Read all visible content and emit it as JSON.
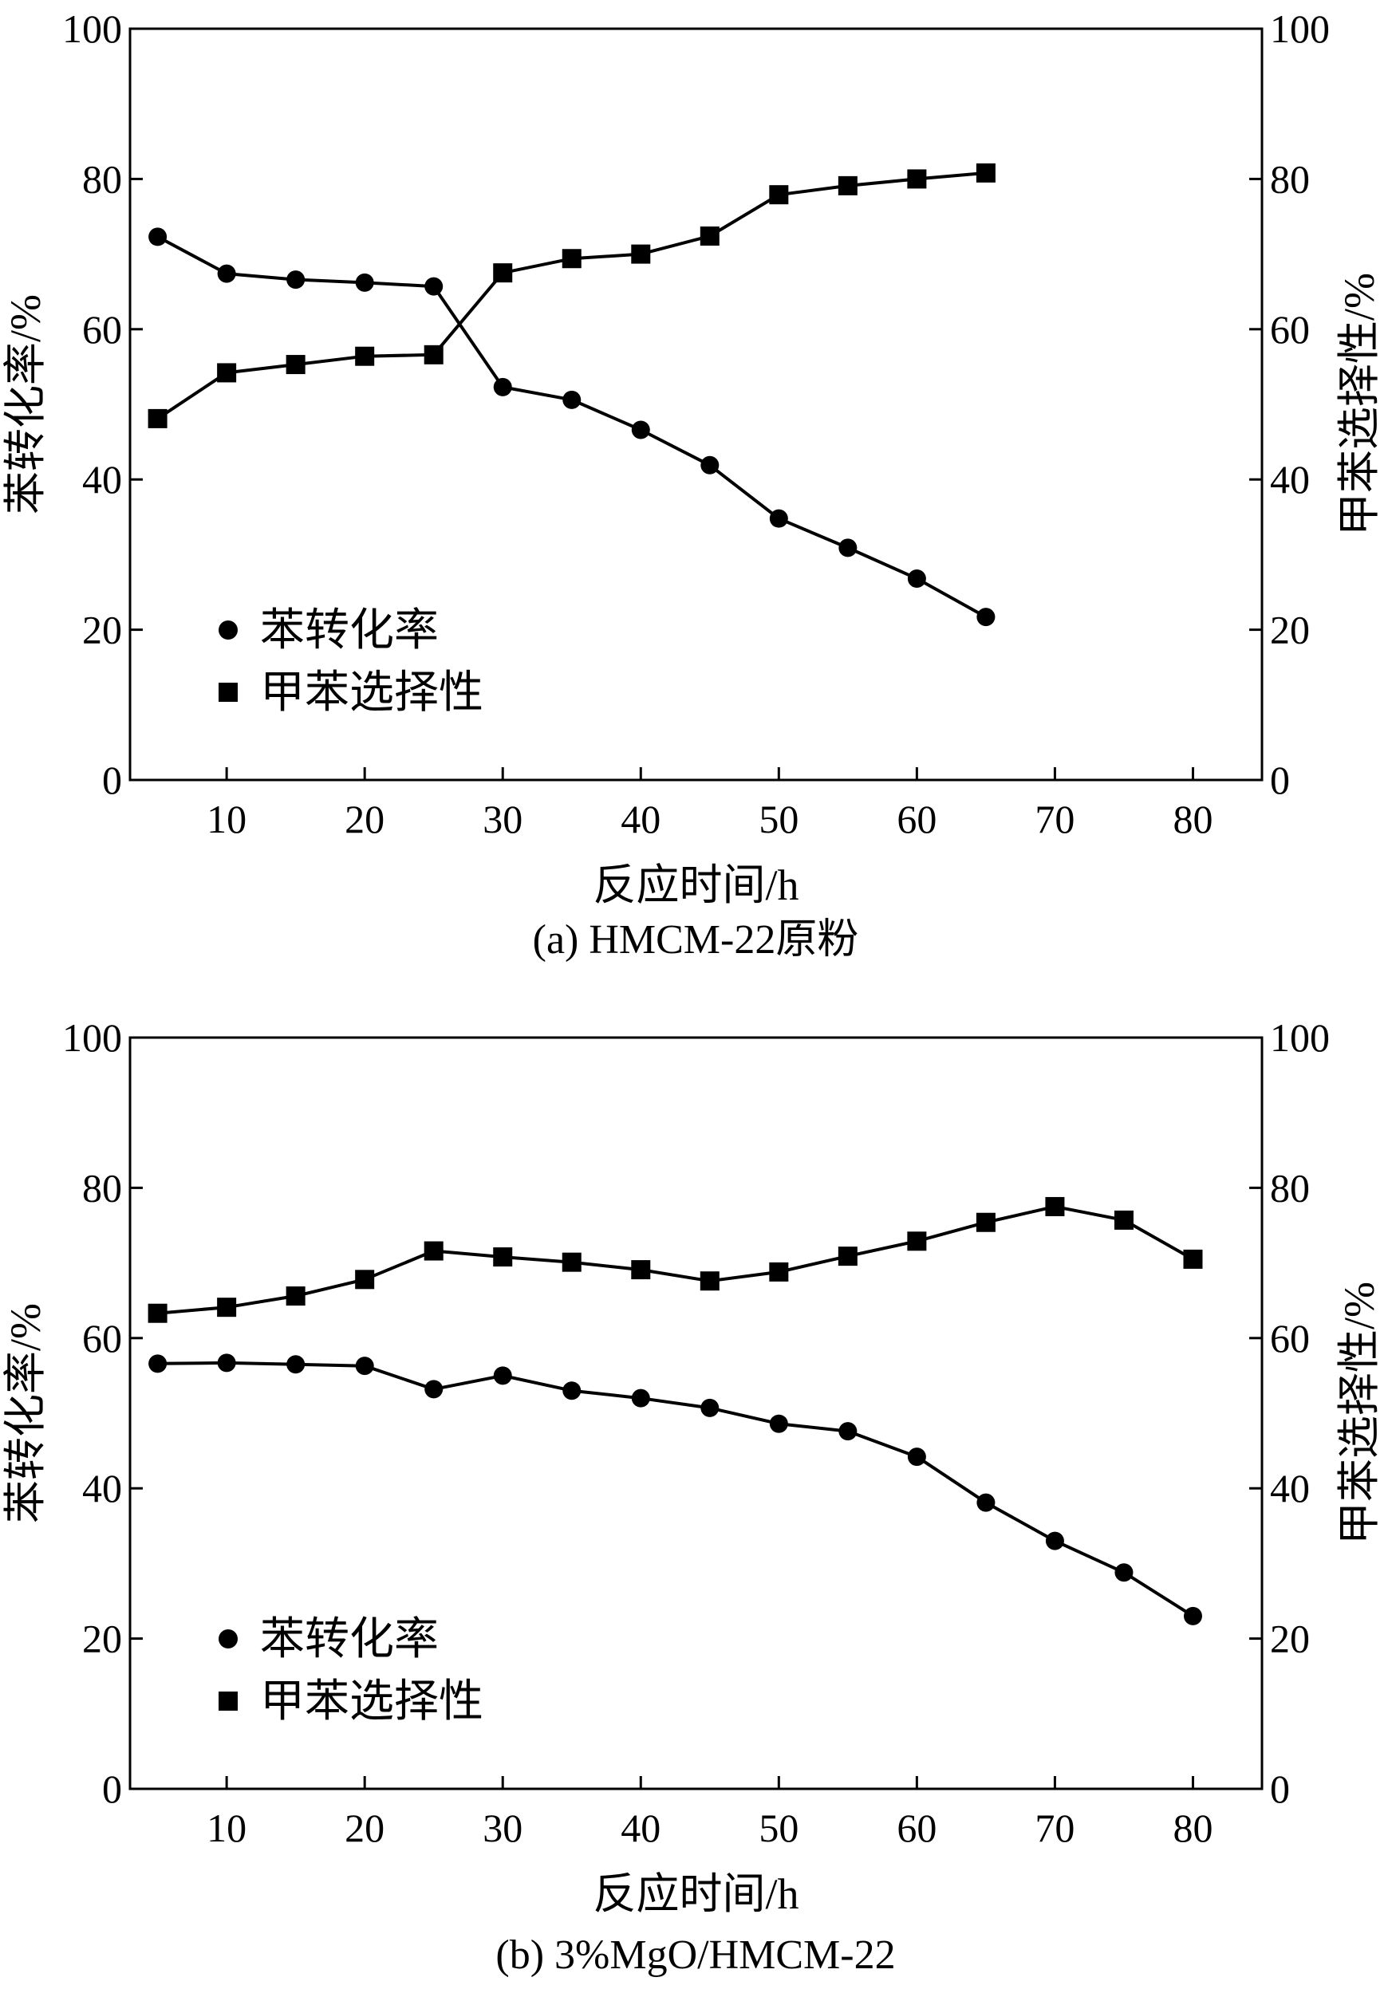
{
  "chart_data": [
    {
      "type": "line",
      "panel": "a",
      "caption": "(a) HMCM-22原粉",
      "xlabel": "反应时间/h",
      "ylabel_left": "苯转化率/%",
      "ylabel_right": "甲苯选择性/%",
      "xlim": [
        3,
        85
      ],
      "ylim": [
        0,
        100
      ],
      "x_ticks": [
        10,
        20,
        30,
        40,
        50,
        60,
        70,
        80
      ],
      "y_ticks": [
        0,
        20,
        40,
        60,
        80,
        100
      ],
      "grid": false,
      "legend_position": "lower-left",
      "series": [
        {
          "name": "苯转化率",
          "marker": "circle",
          "axis": "left",
          "x": [
            5,
            10,
            15,
            20,
            25,
            30,
            35,
            40,
            45,
            50,
            55,
            60,
            65
          ],
          "values": [
            72.3,
            67.4,
            66.6,
            66.2,
            65.7,
            52.3,
            50.6,
            46.6,
            41.9,
            34.8,
            30.9,
            26.8,
            21.7
          ]
        },
        {
          "name": "甲苯选择性",
          "marker": "square",
          "axis": "right",
          "x": [
            5,
            10,
            15,
            20,
            25,
            30,
            35,
            40,
            45,
            50,
            55,
            60,
            65
          ],
          "values": [
            48.1,
            54.2,
            55.3,
            56.4,
            56.6,
            67.5,
            69.4,
            70.0,
            72.4,
            77.9,
            79.1,
            80.0,
            80.8
          ]
        }
      ]
    },
    {
      "type": "line",
      "panel": "b",
      "caption": "(b) 3%MgO/HMCM-22",
      "xlabel": "反应时间/h",
      "ylabel_left": "苯转化率/%",
      "ylabel_right": "甲苯选择性/%",
      "xlim": [
        3,
        85
      ],
      "ylim": [
        0,
        100
      ],
      "x_ticks": [
        10,
        20,
        30,
        40,
        50,
        60,
        70,
        80
      ],
      "y_ticks": [
        0,
        20,
        40,
        60,
        80,
        100
      ],
      "grid": false,
      "legend_position": "lower-left",
      "series": [
        {
          "name": "苯转化率",
          "marker": "circle",
          "axis": "left",
          "x": [
            5,
            10,
            15,
            20,
            25,
            30,
            35,
            40,
            45,
            50,
            55,
            60,
            65,
            70,
            75,
            80
          ],
          "values": [
            56.6,
            56.7,
            56.5,
            56.3,
            53.2,
            55.0,
            53.0,
            52.0,
            50.7,
            48.6,
            47.6,
            44.2,
            38.1,
            33.0,
            28.8,
            23.0
          ]
        },
        {
          "name": "甲苯选择性",
          "marker": "square",
          "axis": "right",
          "x": [
            5,
            10,
            15,
            20,
            25,
            30,
            35,
            40,
            45,
            50,
            55,
            60,
            65,
            70,
            75,
            80
          ],
          "values": [
            63.3,
            64.1,
            65.6,
            67.8,
            71.6,
            70.8,
            70.1,
            69.1,
            67.6,
            68.8,
            70.9,
            72.9,
            75.4,
            77.5,
            75.7,
            70.5
          ]
        }
      ]
    }
  ]
}
